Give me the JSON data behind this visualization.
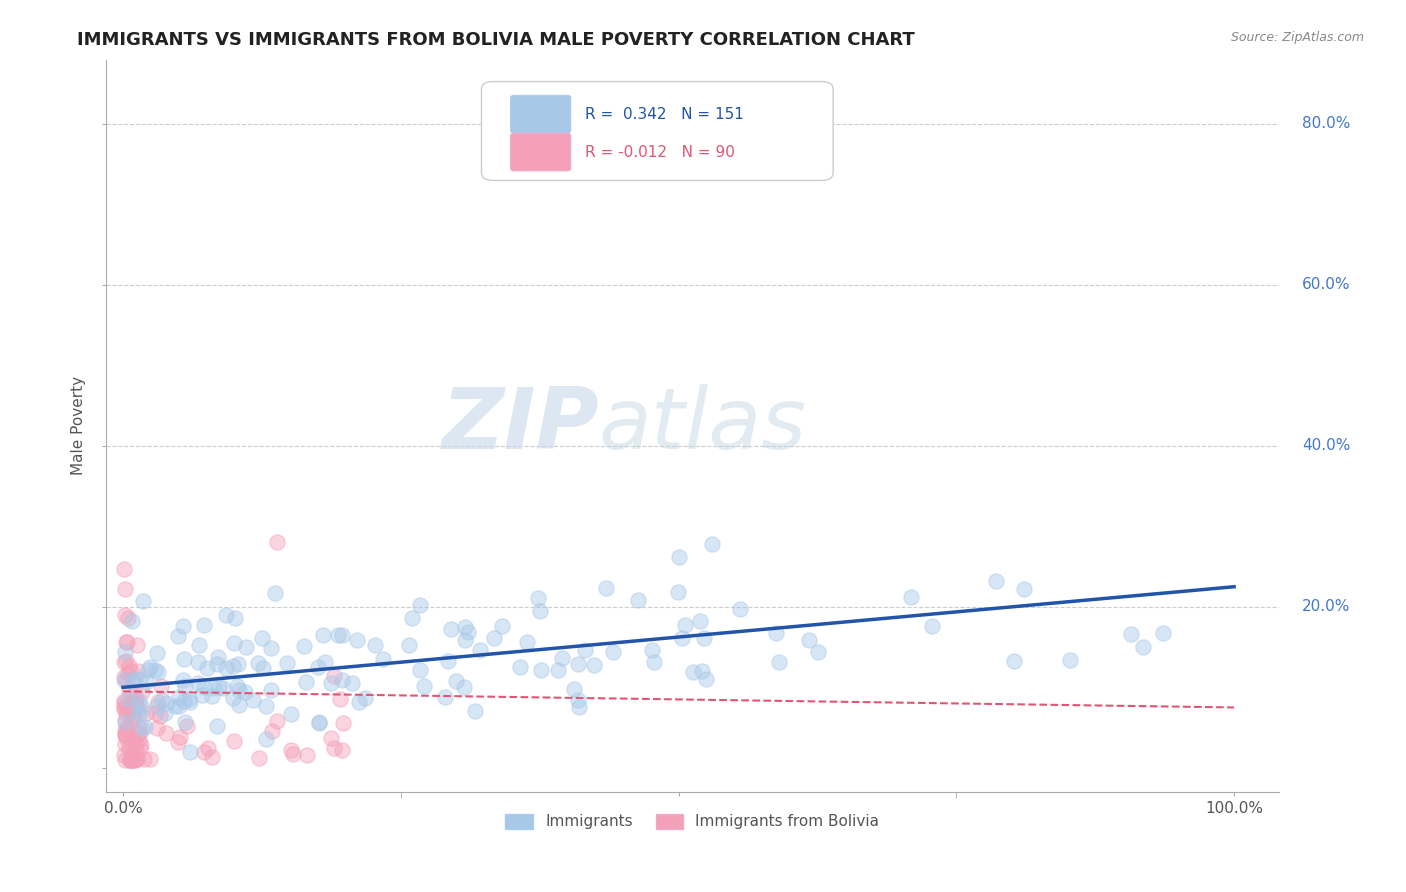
{
  "title": "IMMIGRANTS VS IMMIGRANTS FROM BOLIVIA MALE POVERTY CORRELATION CHART",
  "source": "Source: ZipAtlas.com",
  "ylabel": "Male Poverty",
  "watermark": "ZIPatlas",
  "blue_line_x": [
    0.0,
    1.0
  ],
  "blue_line_y": [
    0.1,
    0.225
  ],
  "pink_line_x": [
    0.0,
    1.0
  ],
  "pink_line_y": [
    0.095,
    0.075
  ],
  "blue_scatter_color": "#a8c8e8",
  "pink_scatter_color": "#f4a0b8",
  "blue_line_color": "#2255aa",
  "pink_line_color": "#e05575",
  "grid_color": "#cccccc",
  "background_color": "#ffffff",
  "ytick_positions": [
    0.0,
    0.2,
    0.4,
    0.6,
    0.8
  ],
  "ytick_labels": [
    "",
    "20.0%",
    "40.0%",
    "60.0%",
    "80.0%"
  ],
  "xtick_positions": [
    0.0,
    0.5,
    1.0
  ],
  "xtick_labels": [
    "0.0%",
    "",
    "100.0%"
  ],
  "scatter_size": 120,
  "scatter_alpha": 0.45,
  "title_fontsize": 13,
  "label_fontsize": 11,
  "ytick_fontsize": 11,
  "xtick_fontsize": 11
}
